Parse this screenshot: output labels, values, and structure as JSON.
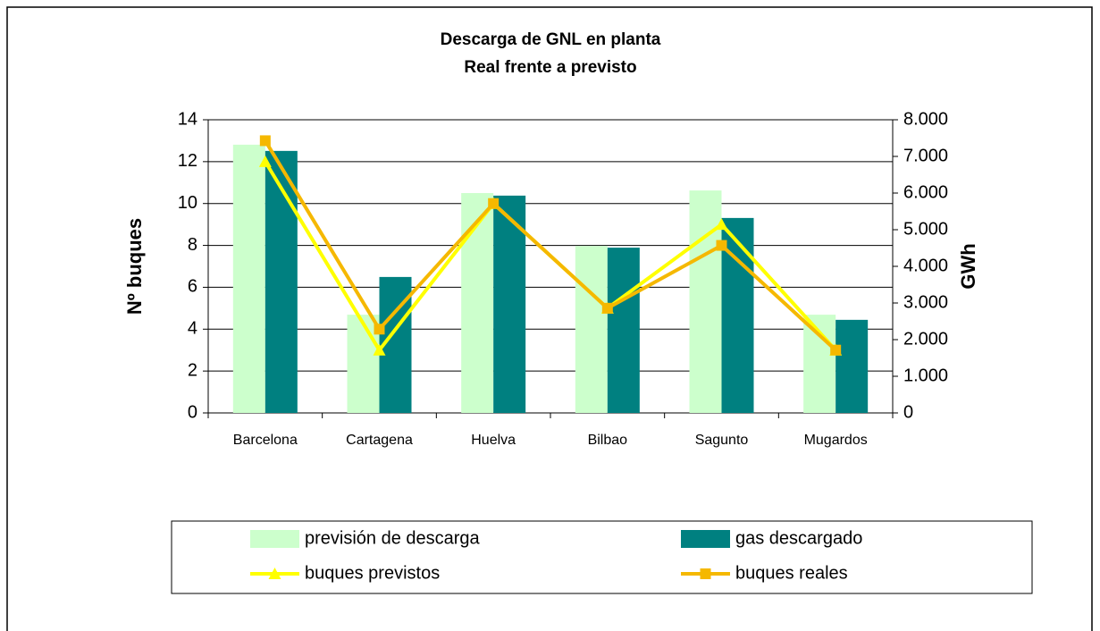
{
  "chart_data": {
    "type": "bar_line",
    "title": "Descarga de GNL en planta",
    "subtitle": "Real frente a previsto",
    "ylabel": "Nº buques",
    "y2label": "GWh",
    "categories": [
      "Barcelona",
      "Cartagena",
      "Huelva",
      "Bilbao",
      "Sagunto",
      "Mugardos"
    ],
    "series": [
      {
        "name": "previsión de descarga",
        "kind": "bar",
        "axis": "y2",
        "color": "#ccffcc",
        "values": [
          7320,
          2680,
          6000,
          4560,
          6070,
          2680
        ]
      },
      {
        "name": "gas descargado",
        "kind": "bar",
        "axis": "y2",
        "color": "#008080",
        "values": [
          7150,
          3710,
          5930,
          4510,
          5320,
          2540
        ]
      },
      {
        "name": "buques previstos",
        "kind": "line",
        "marker": "triangle",
        "color": "#ffff00",
        "values": [
          12,
          3,
          10,
          5,
          9,
          3
        ]
      },
      {
        "name": "buques reales",
        "kind": "line",
        "marker": "square",
        "color": "#f5b800",
        "values": [
          13,
          4,
          10,
          5,
          8,
          3
        ]
      }
    ],
    "ylim": [
      0,
      14
    ],
    "yticks": [
      0,
      2,
      4,
      6,
      8,
      10,
      12,
      14
    ],
    "y2lim": [
      0,
      8000
    ],
    "y2ticks": [
      0,
      {
        "value": 1000,
        "label": "1.000"
      },
      {
        "value": 2000,
        "label": "2.000"
      },
      {
        "value": 3000,
        "label": "3.000"
      },
      {
        "value": 4000,
        "label": "4.000"
      },
      {
        "value": 5000,
        "label": "5.000"
      },
      {
        "value": 6000,
        "label": "6.000"
      },
      {
        "value": 7000,
        "label": "7.000"
      },
      {
        "value": 8000,
        "label": "8.000"
      }
    ],
    "grid": true,
    "legend": "bottom"
  }
}
